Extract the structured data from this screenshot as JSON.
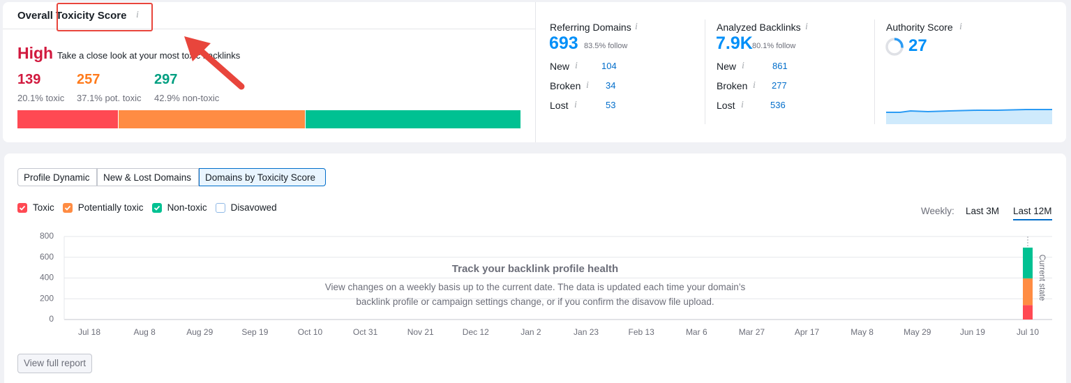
{
  "toxicity_card": {
    "title": "Overall Toxicity Score",
    "level": "High",
    "description": "Take a close look at your most toxic backlinks",
    "groups": [
      {
        "count": 139,
        "share": "20.1% toxic",
        "color": "#ff4953"
      },
      {
        "count": 257,
        "share": "37.1% pot. toxic",
        "color": "#ff8c43"
      },
      {
        "count": 297,
        "share": "42.9% non-toxic",
        "color": "#00c192"
      }
    ]
  },
  "referring_domains": {
    "title": "Referring Domains",
    "total": 693,
    "follow": "83.5% follow",
    "rows": [
      {
        "label": "New",
        "value": 104
      },
      {
        "label": "Broken",
        "value": 34
      },
      {
        "label": "Lost",
        "value": 53
      }
    ]
  },
  "analyzed_backlinks": {
    "title": "Analyzed Backlinks",
    "total": "7.9K",
    "follow": "80.1% follow",
    "rows": [
      {
        "label": "New",
        "value": 861
      },
      {
        "label": "Broken",
        "value": 277
      },
      {
        "label": "Lost",
        "value": 536
      }
    ]
  },
  "authority_score": {
    "title": "Authority Score",
    "value": 27
  },
  "tabs": [
    "Profile Dynamic",
    "New & Lost Domains",
    "Domains by Toxicity Score"
  ],
  "period": {
    "label": "Weekly:",
    "options": [
      "Last 3M",
      "Last 12M"
    ]
  },
  "chart": {
    "type": "bar",
    "stacked": true,
    "categories": [
      "Jul 18",
      "Aug 8",
      "Aug 29",
      "Sep 19",
      "Oct 10",
      "Oct 31",
      "Nov 21",
      "Dec 12",
      "Jan 2",
      "Jan 23",
      "Feb 13",
      "Mar 6",
      "Mar 27",
      "Apr 17",
      "May 8",
      "May 29",
      "Jun 19",
      "Jul 10"
    ],
    "series": [
      {
        "name": "Toxic",
        "color": "#ff4953",
        "values": [
          null,
          null,
          null,
          null,
          null,
          null,
          null,
          null,
          null,
          null,
          null,
          null,
          null,
          null,
          null,
          null,
          null,
          139
        ]
      },
      {
        "name": "Potentially toxic",
        "color": "#ff8c43",
        "values": [
          null,
          null,
          null,
          null,
          null,
          null,
          null,
          null,
          null,
          null,
          null,
          null,
          null,
          null,
          null,
          null,
          null,
          257
        ]
      },
      {
        "name": "Non-toxic",
        "color": "#00c192",
        "values": [
          null,
          null,
          null,
          null,
          null,
          null,
          null,
          null,
          null,
          null,
          null,
          null,
          null,
          null,
          null,
          null,
          null,
          297
        ]
      },
      {
        "name": "Disavowed",
        "color": "#ffffff",
        "values": [
          null,
          null,
          null,
          null,
          null,
          null,
          null,
          null,
          null,
          null,
          null,
          null,
          null,
          null,
          null,
          null,
          null,
          null
        ]
      }
    ],
    "ylim": [
      0,
      800
    ],
    "yticks": [
      0,
      200,
      400,
      600,
      800
    ],
    "grid": true,
    "overlay_title": "Track your backlink profile health",
    "overlay_text": "View changes on a weekly basis up to the current date. The data is updated each time your domain’s backlink profile or campaign settings change, or if you confirm the disavow file upload.",
    "current_state": "Current state"
  },
  "button": "View full report"
}
